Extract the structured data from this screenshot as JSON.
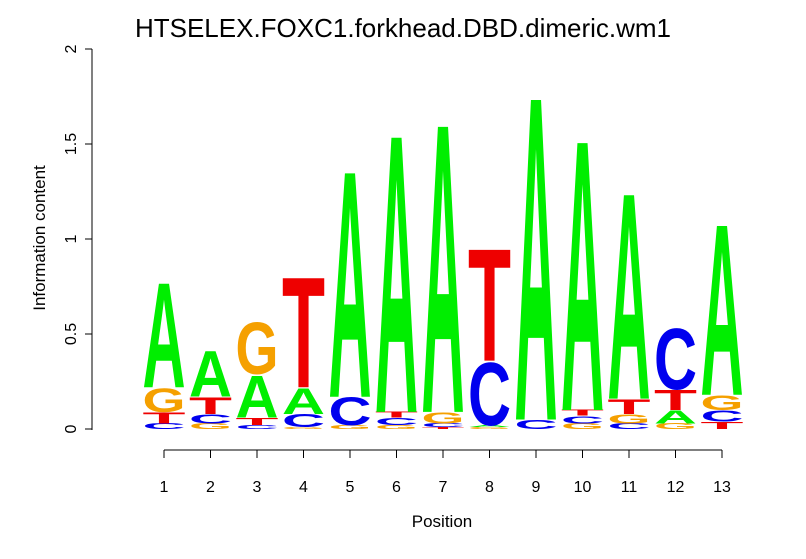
{
  "chart_data": {
    "type": "sequence-logo",
    "title": "HTSELEX.FOXC1.forkhead.DBD.dimeric.wm1",
    "xlabel": "Position",
    "ylabel": "Information content",
    "ylim": [
      0,
      2
    ],
    "yticks": [
      "0",
      "0.5",
      "1",
      "1.5",
      "2"
    ],
    "positions": [
      "1",
      "2",
      "3",
      "4",
      "5",
      "6",
      "7",
      "8",
      "9",
      "10",
      "11",
      "12",
      "13"
    ],
    "colors": {
      "A": "#00ee00",
      "C": "#0000ee",
      "G": "#f5a000",
      "T": "#ee0000"
    },
    "stacks": [
      [
        {
          "l": "C",
          "h": 0.03
        },
        {
          "l": "T",
          "h": 0.06
        },
        {
          "l": "G",
          "h": 0.13
        },
        {
          "l": "A",
          "h": 0.57
        }
      ],
      [
        {
          "l": "G",
          "h": 0.03
        },
        {
          "l": "C",
          "h": 0.05
        },
        {
          "l": "T",
          "h": 0.09
        },
        {
          "l": "A",
          "h": 0.25
        }
      ],
      [
        {
          "l": "C",
          "h": 0.02
        },
        {
          "l": "T",
          "h": 0.04
        },
        {
          "l": "A",
          "h": 0.23
        },
        {
          "l": "G",
          "h": 0.28
        }
      ],
      [
        {
          "l": "G",
          "h": 0.01
        },
        {
          "l": "C",
          "h": 0.07
        },
        {
          "l": "A",
          "h": 0.14
        },
        {
          "l": "T",
          "h": 0.6
        }
      ],
      [
        {
          "l": "G",
          "h": 0.02
        },
        {
          "l": "C",
          "h": 0.15
        },
        {
          "l": "A",
          "h": 1.23
        }
      ],
      [
        {
          "l": "G",
          "h": 0.02
        },
        {
          "l": "C",
          "h": 0.04
        },
        {
          "l": "T",
          "h": 0.03
        },
        {
          "l": "A",
          "h": 1.51
        }
      ],
      [
        {
          "l": "T",
          "h": 0.01
        },
        {
          "l": "C",
          "h": 0.02
        },
        {
          "l": "G",
          "h": 0.06
        },
        {
          "l": "A",
          "h": 1.57
        }
      ],
      [
        {
          "l": "G",
          "h": 0.01
        },
        {
          "l": "A",
          "h": 0.01
        },
        {
          "l": "C",
          "h": 0.34
        },
        {
          "l": "T",
          "h": 0.61
        }
      ],
      [
        {
          "l": "C",
          "h": 0.05
        },
        {
          "l": "A",
          "h": 1.76
        }
      ],
      [
        {
          "l": "G",
          "h": 0.03
        },
        {
          "l": "C",
          "h": 0.04
        },
        {
          "l": "T",
          "h": 0.03
        },
        {
          "l": "A",
          "h": 1.47
        }
      ],
      [
        {
          "l": "C",
          "h": 0.03
        },
        {
          "l": "G",
          "h": 0.05
        },
        {
          "l": "T",
          "h": 0.08
        },
        {
          "l": "A",
          "h": 1.12
        }
      ],
      [
        {
          "l": "G",
          "h": 0.03
        },
        {
          "l": "A",
          "h": 0.07
        },
        {
          "l": "T",
          "h": 0.11
        },
        {
          "l": "C",
          "h": 0.33
        }
      ],
      [
        {
          "l": "T",
          "h": 0.04
        },
        {
          "l": "C",
          "h": 0.06
        },
        {
          "l": "G",
          "h": 0.08
        },
        {
          "l": "A",
          "h": 0.93
        }
      ]
    ]
  }
}
